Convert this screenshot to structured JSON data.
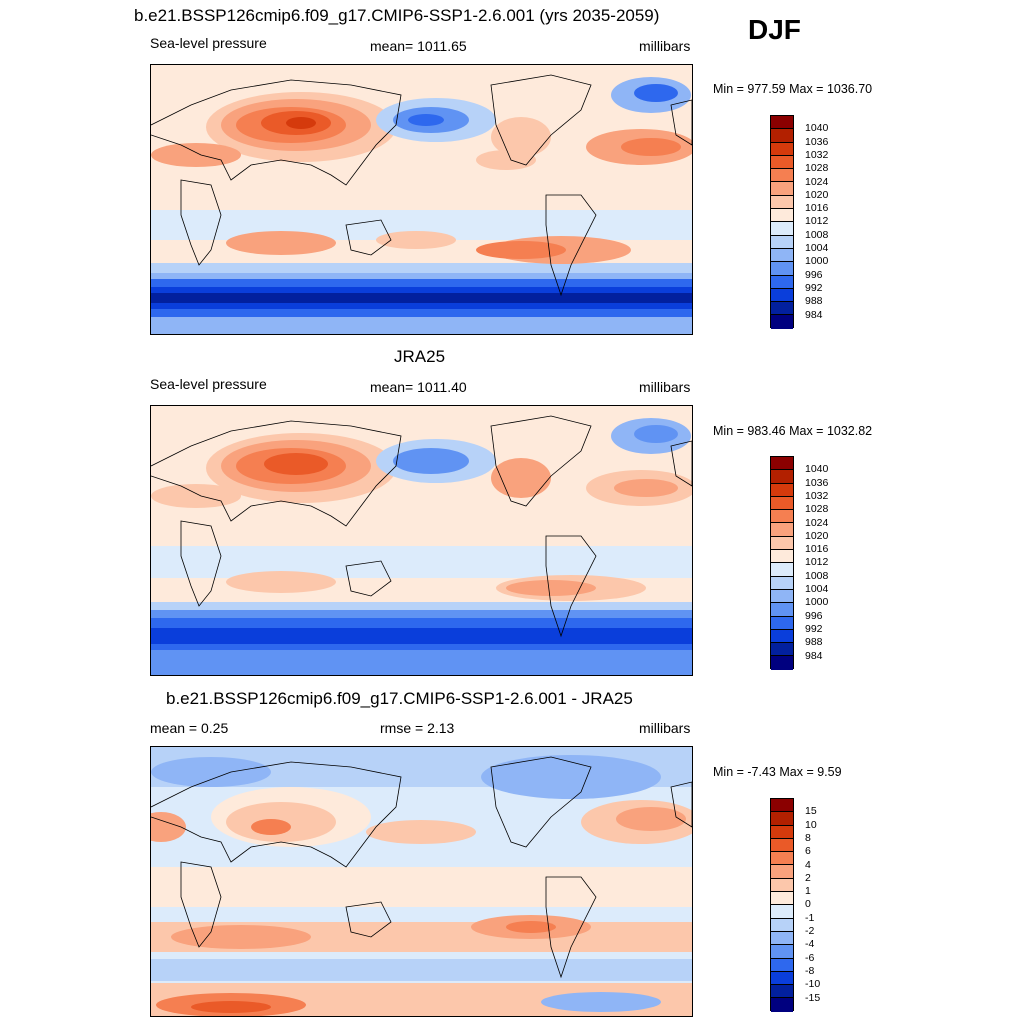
{
  "season": "DJF",
  "panels": [
    {
      "title": "b.e21.BSSP126cmip6.f09_g17.CMIP6-SSP1-2.6.001 (yrs 2035-2059)",
      "left_text": "Sea-level pressure",
      "center_text": "mean= 1011.65",
      "right_text": "millibars",
      "minmax": "Min = 977.59 Max = 1036.70",
      "colorbar": {
        "labels": [
          "1040",
          "1036",
          "1032",
          "1028",
          "1024",
          "1020",
          "1016",
          "1012",
          "1008",
          "1004",
          "1000",
          "996",
          "992",
          "988",
          "984"
        ],
        "colors": [
          "#8b0000",
          "#b22000",
          "#d53a0c",
          "#ea5a28",
          "#f57f51",
          "#f9a27d",
          "#fcc7ab",
          "#feeadb",
          "#dcebfb",
          "#b7d2f8",
          "#8fb5f6",
          "#6093f3",
          "#2e68ee",
          "#0a3edb",
          "#02209e",
          "#00007f"
        ]
      }
    },
    {
      "title": "JRA25",
      "left_text": "Sea-level pressure",
      "center_text": "mean= 1011.40",
      "right_text": "millibars",
      "minmax": "Min = 983.46 Max = 1032.82",
      "colorbar": {
        "labels": [
          "1040",
          "1036",
          "1032",
          "1028",
          "1024",
          "1020",
          "1016",
          "1012",
          "1008",
          "1004",
          "1000",
          "996",
          "992",
          "988",
          "984"
        ],
        "colors": [
          "#8b0000",
          "#b22000",
          "#d53a0c",
          "#ea5a28",
          "#f57f51",
          "#f9a27d",
          "#fcc7ab",
          "#feeadb",
          "#dcebfb",
          "#b7d2f8",
          "#8fb5f6",
          "#6093f3",
          "#2e68ee",
          "#0a3edb",
          "#02209e",
          "#00007f"
        ]
      }
    },
    {
      "title": "b.e21.BSSP126cmip6.f09_g17.CMIP6-SSP1-2.6.001 - JRA25",
      "left_text": "mean =   0.25",
      "center_text": "rmse =   2.13",
      "right_text": "millibars",
      "minmax": "Min =  -7.43 Max =   9.59",
      "colorbar": {
        "labels": [
          "15",
          "10",
          "8",
          "6",
          "4",
          "2",
          "1",
          "0",
          "-1",
          "-2",
          "-4",
          "-6",
          "-8",
          "-10",
          "-15"
        ],
        "colors": [
          "#8b0000",
          "#b22000",
          "#d53a0c",
          "#ea5a28",
          "#f57f51",
          "#f9a27d",
          "#fcc7ab",
          "#feeadb",
          "#dcebfb",
          "#b7d2f8",
          "#8fb5f6",
          "#6093f3",
          "#2e68ee",
          "#0a3edb",
          "#02209e",
          "#00007f"
        ]
      }
    }
  ]
}
